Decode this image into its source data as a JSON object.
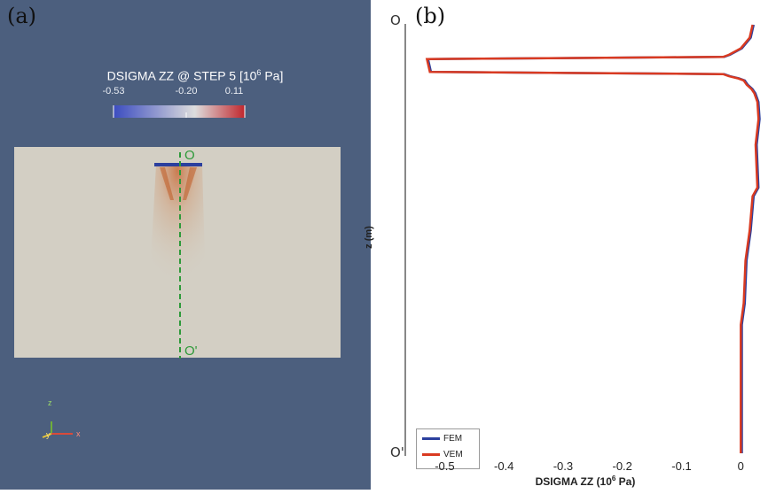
{
  "panel_a": {
    "label": "(a)",
    "colorbar": {
      "title_main": "DSIGMA ZZ @ STEP 5 [10",
      "title_exp": "6",
      "title_end": " Pa]",
      "ticks": [
        "-0.53",
        "-0.20",
        "0.11"
      ],
      "colors": [
        "#3b4cc0",
        "#dddddd",
        "#c1272d"
      ]
    },
    "line_labels": {
      "start": "O",
      "end": "O'"
    },
    "background_color": "#4c5f7e",
    "domain_color": "#d3cfc4",
    "axes_triad": {
      "z": "z",
      "y": "y",
      "x": "x"
    }
  },
  "panel_b": {
    "label": "(b)",
    "point_labels": {
      "top": "O",
      "bottom": "O'"
    }
  },
  "chart_data": {
    "type": "line",
    "xlabel_main": "DSIGMA ZZ  (10",
    "xlabel_exp": "6",
    "xlabel_end": " Pa)",
    "ylabel": "z (m)",
    "xlim": [
      -0.55,
      0.04
    ],
    "x_ticks": [
      -0.5,
      -0.4,
      -0.3,
      -0.2,
      -0.1,
      0
    ],
    "x_tick_labels": [
      "-0.5",
      "-0.4",
      "-0.3",
      "-0.2",
      "-0.1",
      "0"
    ],
    "grid": false,
    "legend_position": "bottom-left",
    "series": [
      {
        "name": "FEM",
        "color": "#2b3f9e",
        "points": [
          [
            0.0,
            0.0
          ],
          [
            0.0,
            0.15
          ],
          [
            0.0,
            0.3
          ],
          [
            0.005,
            0.35
          ],
          [
            0.008,
            0.45
          ],
          [
            0.015,
            0.52
          ],
          [
            0.02,
            0.6
          ],
          [
            0.028,
            0.62
          ],
          [
            0.025,
            0.72
          ],
          [
            0.03,
            0.78
          ],
          [
            0.028,
            0.82
          ],
          [
            0.023,
            0.84
          ],
          [
            0.018,
            0.85
          ],
          [
            0.01,
            0.86
          ],
          [
            0.005,
            0.87
          ],
          [
            -0.005,
            0.875
          ],
          [
            -0.02,
            0.88
          ],
          [
            -0.03,
            0.885
          ],
          [
            -0.525,
            0.89
          ],
          [
            -0.53,
            0.92
          ],
          [
            -0.03,
            0.925
          ],
          [
            -0.02,
            0.93
          ],
          [
            0.0,
            0.945
          ],
          [
            0.015,
            0.97
          ],
          [
            0.02,
            1.0
          ]
        ]
      },
      {
        "name": "VEM",
        "color": "#d93a21",
        "points": [
          [
            0.0,
            0.0
          ],
          [
            0.0,
            0.15
          ],
          [
            0.0,
            0.3
          ],
          [
            0.005,
            0.35
          ],
          [
            0.008,
            0.45
          ],
          [
            0.015,
            0.52
          ],
          [
            0.02,
            0.6
          ],
          [
            0.028,
            0.62
          ],
          [
            0.025,
            0.72
          ],
          [
            0.03,
            0.78
          ],
          [
            0.028,
            0.82
          ],
          [
            0.023,
            0.84
          ],
          [
            0.018,
            0.85
          ],
          [
            0.01,
            0.86
          ],
          [
            0.005,
            0.87
          ],
          [
            -0.005,
            0.875
          ],
          [
            -0.02,
            0.88
          ],
          [
            -0.03,
            0.885
          ],
          [
            -0.525,
            0.89
          ],
          [
            -0.53,
            0.92
          ],
          [
            -0.03,
            0.925
          ],
          [
            -0.02,
            0.93
          ],
          [
            0.0,
            0.945
          ],
          [
            0.015,
            0.97
          ],
          [
            0.02,
            1.0
          ]
        ]
      }
    ]
  }
}
